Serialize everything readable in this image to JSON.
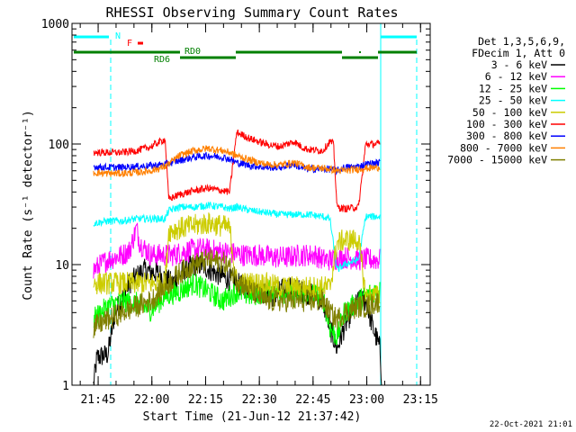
{
  "chart_data": {
    "type": "line",
    "title": "RHESSI Observing Summary Count Rates",
    "xlabel": "Start Time (21-Jun-12 21:37:42)",
    "ylabel": "Count Rate (s⁻¹ detector⁻¹)",
    "y_scale": "log",
    "ylim": [
      1,
      1000
    ],
    "xlim_minutes": [
      0,
      100
    ],
    "x_ticks": [
      {
        "label": "21:45",
        "t": 7.3
      },
      {
        "label": "22:00",
        "t": 22.3
      },
      {
        "label": "22:15",
        "t": 37.3
      },
      {
        "label": "22:30",
        "t": 52.3
      },
      {
        "label": "22:45",
        "t": 67.3
      },
      {
        "label": "23:00",
        "t": 82.3
      },
      {
        "label": "23:15",
        "t": 97.3
      }
    ],
    "y_ticks": [
      {
        "label": "1",
        "v": 1
      },
      {
        "label": "10",
        "v": 10
      },
      {
        "label": "100",
        "v": 100
      },
      {
        "label": "1000",
        "v": 1000
      }
    ],
    "legend_header": [
      "Det 1,3,5,6,9,",
      "FDecim 1, Att 0"
    ],
    "series": [
      {
        "name": "3 - 6 keV",
        "color": "#000000",
        "points": [
          [
            6,
            1
          ],
          [
            7,
            1.7
          ],
          [
            10,
            1.8
          ],
          [
            12,
            4
          ],
          [
            16,
            7
          ],
          [
            20,
            9
          ],
          [
            24,
            8.5
          ],
          [
            28,
            7
          ],
          [
            32,
            9.5
          ],
          [
            36,
            10
          ],
          [
            40,
            8.5
          ],
          [
            44,
            7.5
          ],
          [
            48,
            6.5
          ],
          [
            52,
            6
          ],
          [
            56,
            5.5
          ],
          [
            60,
            6.5
          ],
          [
            64,
            6
          ],
          [
            68,
            5.5
          ],
          [
            70,
            5
          ],
          [
            72,
            3
          ],
          [
            74,
            2
          ],
          [
            76,
            3
          ],
          [
            78,
            4
          ],
          [
            80,
            5
          ],
          [
            82,
            5
          ],
          [
            84,
            3
          ],
          [
            86,
            2
          ],
          [
            86.5,
            1
          ]
        ]
      },
      {
        "name": "6 - 12 keV",
        "color": "#ff00ff",
        "points": [
          [
            6,
            9
          ],
          [
            10,
            11
          ],
          [
            14,
            12
          ],
          [
            16,
            13
          ],
          [
            18,
            20
          ],
          [
            19,
            15
          ],
          [
            22,
            12
          ],
          [
            28,
            12
          ],
          [
            32,
            13
          ],
          [
            36,
            13.5
          ],
          [
            40,
            13
          ],
          [
            44,
            12.5
          ],
          [
            48,
            12
          ],
          [
            52,
            12
          ],
          [
            56,
            11.5
          ],
          [
            60,
            11.5
          ],
          [
            64,
            12
          ],
          [
            68,
            12
          ],
          [
            70,
            11
          ],
          [
            72,
            11
          ],
          [
            76,
            11.5
          ],
          [
            80,
            11
          ],
          [
            82,
            11
          ],
          [
            84,
            11
          ],
          [
            86,
            11
          ]
        ]
      },
      {
        "name": "12 - 25 keV",
        "color": "#00ff00",
        "points": [
          [
            6,
            3.5
          ],
          [
            10,
            4.5
          ],
          [
            14,
            5
          ],
          [
            18,
            4.8
          ],
          [
            22,
            4.2
          ],
          [
            26,
            5.5
          ],
          [
            30,
            6
          ],
          [
            34,
            7
          ],
          [
            38,
            6
          ],
          [
            42,
            5
          ],
          [
            46,
            6
          ],
          [
            50,
            5.5
          ],
          [
            54,
            6
          ],
          [
            58,
            6
          ],
          [
            62,
            5.5
          ],
          [
            66,
            5.8
          ],
          [
            70,
            5.5
          ],
          [
            72,
            3
          ],
          [
            74,
            2.5
          ],
          [
            76,
            4
          ],
          [
            80,
            5
          ],
          [
            84,
            6
          ],
          [
            86,
            6
          ]
        ]
      },
      {
        "name": "25 - 50 keV",
        "color": "#00ffff",
        "points": [
          [
            6,
            22
          ],
          [
            10,
            23
          ],
          [
            14,
            23
          ],
          [
            18,
            24
          ],
          [
            22,
            24
          ],
          [
            26,
            24
          ],
          [
            27,
            28
          ],
          [
            30,
            30
          ],
          [
            34,
            30
          ],
          [
            38,
            31
          ],
          [
            42,
            30
          ],
          [
            44,
            29
          ],
          [
            46,
            30
          ],
          [
            50,
            28
          ],
          [
            54,
            27
          ],
          [
            58,
            26
          ],
          [
            62,
            26
          ],
          [
            66,
            26
          ],
          [
            70,
            25
          ],
          [
            72,
            24
          ],
          [
            74,
            9
          ],
          [
            76,
            10
          ],
          [
            80,
            11
          ],
          [
            82,
            25
          ],
          [
            86,
            25
          ]
        ]
      },
      {
        "name": "50 - 100 keV",
        "color": "#cccc00",
        "points": [
          [
            6,
            7
          ],
          [
            10,
            7
          ],
          [
            14,
            7
          ],
          [
            18,
            7
          ],
          [
            22,
            7
          ],
          [
            26,
            7
          ],
          [
            27,
            19
          ],
          [
            30,
            20
          ],
          [
            34,
            21
          ],
          [
            38,
            22
          ],
          [
            42,
            21
          ],
          [
            44,
            20
          ],
          [
            46,
            7
          ],
          [
            50,
            7
          ],
          [
            54,
            7
          ],
          [
            58,
            6.5
          ],
          [
            62,
            6.5
          ],
          [
            66,
            6.5
          ],
          [
            70,
            6.5
          ],
          [
            72,
            6.5
          ],
          [
            74,
            15
          ],
          [
            76,
            16
          ],
          [
            80,
            16
          ],
          [
            82,
            5.5
          ],
          [
            86,
            5.5
          ]
        ]
      },
      {
        "name": "100 - 300 keV",
        "color": "#ff0000",
        "points": [
          [
            6,
            85
          ],
          [
            10,
            85
          ],
          [
            14,
            85
          ],
          [
            18,
            88
          ],
          [
            22,
            95
          ],
          [
            26,
            110
          ],
          [
            27,
            35
          ],
          [
            30,
            38
          ],
          [
            34,
            41
          ],
          [
            38,
            43
          ],
          [
            42,
            41
          ],
          [
            44,
            40
          ],
          [
            46,
            125
          ],
          [
            50,
            110
          ],
          [
            54,
            100
          ],
          [
            58,
            95
          ],
          [
            62,
            105
          ],
          [
            64,
            95
          ],
          [
            66,
            90
          ],
          [
            70,
            88
          ],
          [
            72,
            105
          ],
          [
            73,
            100
          ],
          [
            74,
            30
          ],
          [
            76,
            29
          ],
          [
            80,
            30
          ],
          [
            82,
            100
          ],
          [
            86,
            100
          ]
        ]
      },
      {
        "name": "300 - 800 keV",
        "color": "#0000ff",
        "points": [
          [
            6,
            65
          ],
          [
            10,
            64
          ],
          [
            14,
            64
          ],
          [
            18,
            65
          ],
          [
            22,
            66
          ],
          [
            26,
            68
          ],
          [
            30,
            73
          ],
          [
            34,
            78
          ],
          [
            38,
            80
          ],
          [
            42,
            78
          ],
          [
            44,
            75
          ],
          [
            46,
            70
          ],
          [
            50,
            66
          ],
          [
            54,
            64
          ],
          [
            58,
            64
          ],
          [
            62,
            68
          ],
          [
            64,
            63
          ],
          [
            66,
            62
          ],
          [
            70,
            62
          ],
          [
            72,
            62
          ],
          [
            74,
            60
          ],
          [
            76,
            64
          ],
          [
            80,
            65
          ],
          [
            82,
            68
          ],
          [
            86,
            70
          ]
        ]
      },
      {
        "name": "800 - 7000 keV",
        "color": "#ff8000",
        "points": [
          [
            6,
            58
          ],
          [
            10,
            57
          ],
          [
            14,
            57
          ],
          [
            18,
            58
          ],
          [
            22,
            60
          ],
          [
            26,
            65
          ],
          [
            30,
            80
          ],
          [
            34,
            88
          ],
          [
            38,
            92
          ],
          [
            42,
            88
          ],
          [
            44,
            85
          ],
          [
            46,
            80
          ],
          [
            50,
            73
          ],
          [
            54,
            68
          ],
          [
            58,
            67
          ],
          [
            62,
            70
          ],
          [
            64,
            67
          ],
          [
            66,
            64
          ],
          [
            70,
            63
          ],
          [
            72,
            62
          ],
          [
            74,
            60
          ],
          [
            76,
            60
          ],
          [
            80,
            62
          ],
          [
            82,
            63
          ],
          [
            86,
            64
          ]
        ]
      },
      {
        "name": "7000 - 15000 keV",
        "color": "#808000",
        "points": [
          [
            6,
            3
          ],
          [
            10,
            3.5
          ],
          [
            14,
            4
          ],
          [
            18,
            4.5
          ],
          [
            22,
            5
          ],
          [
            26,
            6.5
          ],
          [
            30,
            8.5
          ],
          [
            34,
            10
          ],
          [
            38,
            11
          ],
          [
            42,
            10.5
          ],
          [
            44,
            9.5
          ],
          [
            46,
            7.5
          ],
          [
            50,
            6
          ],
          [
            54,
            5
          ],
          [
            58,
            5
          ],
          [
            62,
            5
          ],
          [
            66,
            5
          ],
          [
            70,
            5
          ],
          [
            72,
            4
          ],
          [
            74,
            3.5
          ],
          [
            76,
            4
          ],
          [
            80,
            4.5
          ],
          [
            82,
            4.5
          ],
          [
            86,
            5
          ]
        ]
      }
    ],
    "flags": [
      {
        "label": "N",
        "color": "#00ffff"
      },
      {
        "label": "F",
        "color": "#ff0000"
      },
      {
        "label": "RD0",
        "color": "#008000"
      },
      {
        "label": "RD6",
        "color": "#008000"
      }
    ]
  },
  "footer": {
    "timestamp": "22-Oct-2021 21:01"
  }
}
